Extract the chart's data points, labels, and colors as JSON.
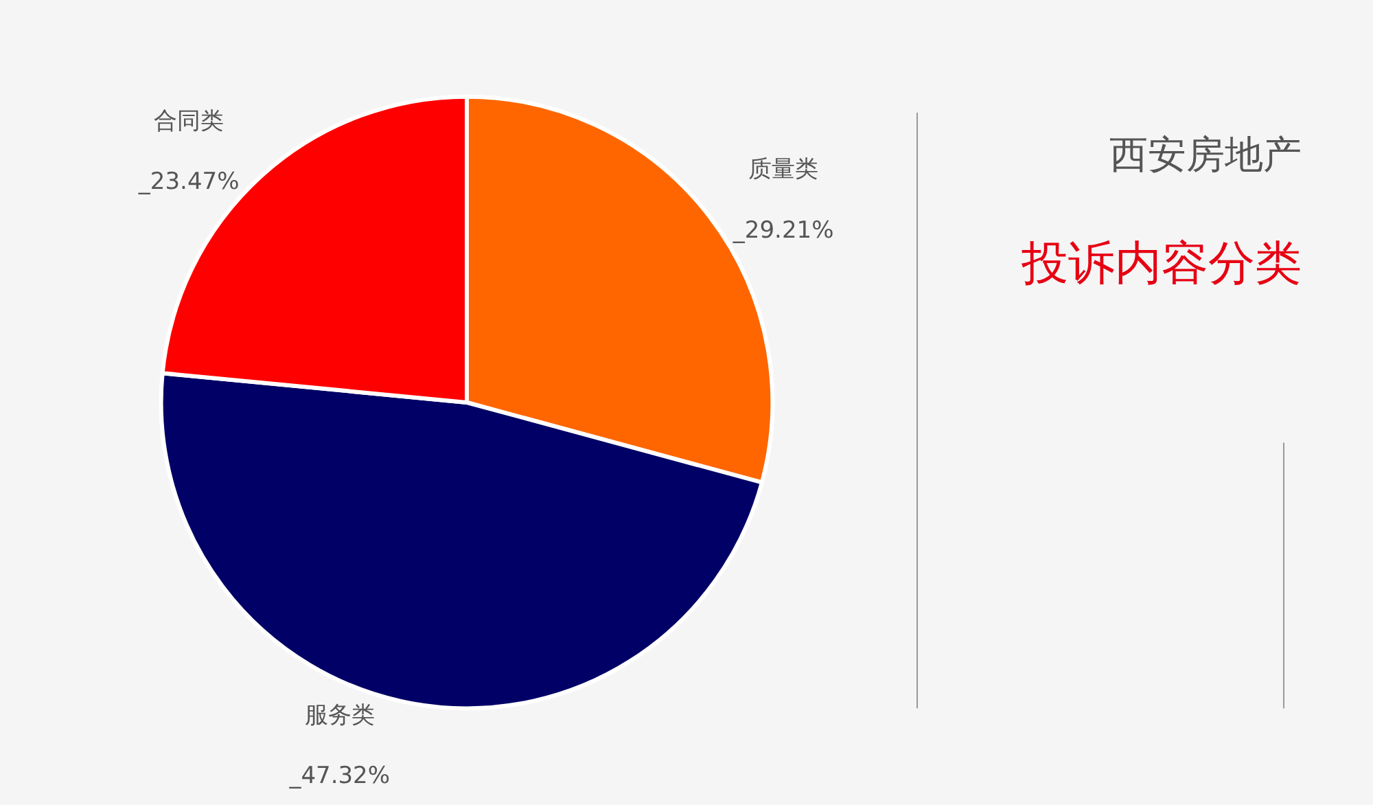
{
  "chart_data": {
    "type": "pie",
    "title": "西安房地产",
    "subtitle": "投诉内容分类",
    "categories": [
      "质量类",
      "服务类",
      "合同类"
    ],
    "values": [
      29.21,
      47.32,
      23.47
    ],
    "colors": [
      "#ff6600",
      "#000066",
      "#ff0000"
    ],
    "value_labels": [
      "_29.21%",
      "_47.32%",
      "_23.47%"
    ],
    "legend": false
  }
}
